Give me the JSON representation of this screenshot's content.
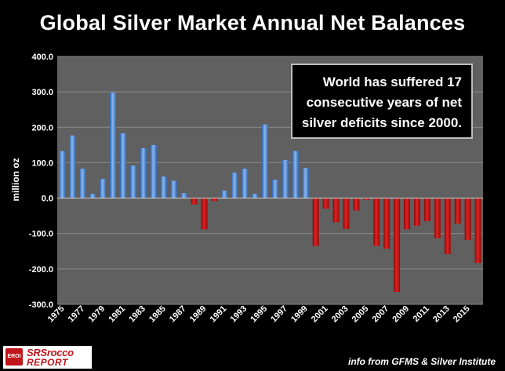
{
  "chart_data": {
    "type": "bar",
    "title": "Global Silver Market Annual Net Balances",
    "ylabel": "million oz",
    "xlabel": "",
    "ylim": [
      -300,
      400
    ],
    "yticks": [
      "400.0",
      "300.0",
      "200.0",
      "100.0",
      "0.0",
      "-100.0",
      "-200.0",
      "-300.0"
    ],
    "grid": "horizontal",
    "categories": [
      "1975",
      "1976",
      "1977",
      "1978",
      "1979",
      "1980",
      "1981",
      "1982",
      "1983",
      "1984",
      "1985",
      "1986",
      "1987",
      "1988",
      "1989",
      "1990",
      "1991",
      "1992",
      "1993",
      "1994",
      "1995",
      "1996",
      "1997",
      "1998",
      "1999",
      "2000",
      "2001",
      "2002",
      "2003",
      "2004",
      "2005",
      "2006",
      "2007",
      "2008",
      "2009",
      "2010",
      "2011",
      "2012",
      "2013",
      "2014",
      "2015",
      "2016"
    ],
    "xtick_labels": [
      "1975",
      "1977",
      "1979",
      "1981",
      "1983",
      "1985",
      "1987",
      "1989",
      "1991",
      "1993",
      "1995",
      "1997",
      "1999",
      "2001",
      "2003",
      "2005",
      "2007",
      "2009",
      "2011",
      "2013",
      "2015"
    ],
    "values": [
      133,
      177,
      83,
      12,
      54,
      298,
      183,
      92,
      141,
      150,
      61,
      49,
      14,
      -18,
      -88,
      -8,
      21,
      72,
      83,
      12,
      208,
      52,
      108,
      133,
      85,
      -135,
      -30,
      -68,
      -87,
      -35,
      -5,
      -135,
      -143,
      -265,
      -88,
      -78,
      -65,
      -113,
      -158,
      -72,
      -118,
      -183
    ],
    "colors": {
      "positive": "#4a86d4",
      "negative": "#cc1111",
      "grid": "#8a8a8a",
      "plot_bg": "#606060"
    }
  },
  "annotation": {
    "lines": [
      "World has suffered 17",
      "consecutive years of net",
      "silver deficits since 2000."
    ]
  },
  "logo": {
    "badge": "EROI",
    "name": "SRSrocco",
    "sub": "REPORT"
  },
  "source_note": "info from GFMS & Silver Institute"
}
